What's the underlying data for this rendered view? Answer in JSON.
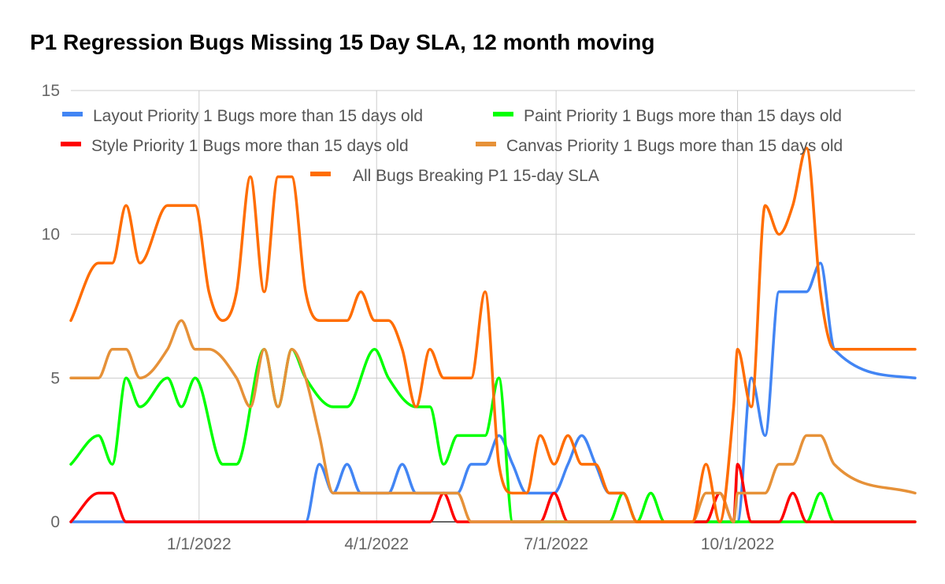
{
  "chart_data": {
    "type": "line",
    "title": "P1 Regression Bugs Missing 15 Day SLA, 12 month moving",
    "xlabel": "",
    "ylabel": "",
    "ylim": [
      0,
      15
    ],
    "xlim": [
      "2021-10-28",
      "2022-12-30"
    ],
    "y_ticks": [
      "0",
      "5",
      "10",
      "15"
    ],
    "x_ticks": [
      {
        "date": "2022-01-01",
        "label": "1/1/2022"
      },
      {
        "date": "2022-04-01",
        "label": "4/1/2022"
      },
      {
        "date": "2022-07-01",
        "label": "7/1/2022"
      },
      {
        "date": "2022-10-01",
        "label": "10/1/2022"
      }
    ],
    "grid": true,
    "legend_position": "top",
    "series": [
      {
        "name": "Layout Priority 1 Bugs more than 15 days old",
        "color": "#4285f4",
        "points": [
          [
            "2021-10-28",
            0
          ],
          [
            "2022-02-24",
            0
          ],
          [
            "2022-03-03",
            2
          ],
          [
            "2022-03-10",
            1
          ],
          [
            "2022-03-17",
            2
          ],
          [
            "2022-03-24",
            1
          ],
          [
            "2022-04-07",
            1
          ],
          [
            "2022-04-14",
            2
          ],
          [
            "2022-04-21",
            1
          ],
          [
            "2022-05-05",
            1
          ],
          [
            "2022-05-12",
            1
          ],
          [
            "2022-05-19",
            2
          ],
          [
            "2022-05-26",
            2
          ],
          [
            "2022-06-02",
            3
          ],
          [
            "2022-06-09",
            2
          ],
          [
            "2022-06-16",
            1
          ],
          [
            "2022-06-23",
            1
          ],
          [
            "2022-06-30",
            1
          ],
          [
            "2022-07-07",
            2
          ],
          [
            "2022-07-14",
            3
          ],
          [
            "2022-07-21",
            2
          ],
          [
            "2022-07-28",
            1
          ],
          [
            "2022-08-04",
            1
          ],
          [
            "2022-08-11",
            0
          ],
          [
            "2022-10-01",
            0
          ],
          [
            "2022-10-08",
            5
          ],
          [
            "2022-10-15",
            3
          ],
          [
            "2022-10-22",
            8
          ],
          [
            "2022-10-29",
            8
          ],
          [
            "2022-11-05",
            8
          ],
          [
            "2022-11-12",
            9
          ],
          [
            "2022-11-19",
            6
          ],
          [
            "2022-12-30",
            5
          ]
        ]
      },
      {
        "name": "Paint Priority 1 Bugs more than 15 days old",
        "color": "#00ff00",
        "points": [
          [
            "2021-10-28",
            2
          ],
          [
            "2021-11-11",
            3
          ],
          [
            "2021-11-18",
            2
          ],
          [
            "2021-11-25",
            5
          ],
          [
            "2021-12-02",
            4
          ],
          [
            "2021-12-16",
            5
          ],
          [
            "2021-12-23",
            4
          ],
          [
            "2021-12-30",
            5
          ],
          [
            "2022-01-13",
            2
          ],
          [
            "2022-01-20",
            2
          ],
          [
            "2022-02-03",
            6
          ],
          [
            "2022-02-10",
            4
          ],
          [
            "2022-02-17",
            6
          ],
          [
            "2022-02-24",
            5
          ],
          [
            "2022-03-10",
            4
          ],
          [
            "2022-03-17",
            4
          ],
          [
            "2022-03-31",
            6
          ],
          [
            "2022-04-07",
            5
          ],
          [
            "2022-04-21",
            4
          ],
          [
            "2022-04-28",
            4
          ],
          [
            "2022-05-05",
            2
          ],
          [
            "2022-05-12",
            3
          ],
          [
            "2022-05-19",
            3
          ],
          [
            "2022-05-26",
            3
          ],
          [
            "2022-06-02",
            5
          ],
          [
            "2022-06-09",
            0
          ],
          [
            "2022-07-28",
            0
          ],
          [
            "2022-08-04",
            1
          ],
          [
            "2022-08-11",
            0
          ],
          [
            "2022-08-18",
            1
          ],
          [
            "2022-08-25",
            0
          ],
          [
            "2022-11-05",
            0
          ],
          [
            "2022-11-12",
            1
          ],
          [
            "2022-11-19",
            0
          ],
          [
            "2022-12-30",
            0
          ]
        ]
      },
      {
        "name": "Style Priority 1 Bugs more than 15 days old",
        "color": "#ff0000",
        "points": [
          [
            "2021-10-28",
            0
          ],
          [
            "2021-11-11",
            1
          ],
          [
            "2021-11-18",
            1
          ],
          [
            "2021-11-25",
            0
          ],
          [
            "2022-04-28",
            0
          ],
          [
            "2022-05-05",
            1
          ],
          [
            "2022-05-12",
            0
          ],
          [
            "2022-06-23",
            0
          ],
          [
            "2022-06-30",
            1
          ],
          [
            "2022-07-07",
            0
          ],
          [
            "2022-09-15",
            0
          ],
          [
            "2022-09-22",
            1
          ],
          [
            "2022-09-29",
            0
          ],
          [
            "2022-10-01",
            2
          ],
          [
            "2022-10-08",
            0
          ],
          [
            "2022-10-22",
            0
          ],
          [
            "2022-10-29",
            1
          ],
          [
            "2022-11-05",
            0
          ],
          [
            "2022-12-30",
            0
          ]
        ]
      },
      {
        "name": "Canvas Priority 1 Bugs more than 15 days old",
        "color": "#e69138",
        "points": [
          [
            "2021-10-28",
            5
          ],
          [
            "2021-11-11",
            5
          ],
          [
            "2021-11-18",
            6
          ],
          [
            "2021-11-25",
            6
          ],
          [
            "2021-12-02",
            5
          ],
          [
            "2021-12-16",
            6
          ],
          [
            "2021-12-23",
            7
          ],
          [
            "2021-12-30",
            6
          ],
          [
            "2022-01-06",
            6
          ],
          [
            "2022-01-20",
            5
          ],
          [
            "2022-01-27",
            4
          ],
          [
            "2022-02-03",
            6
          ],
          [
            "2022-02-10",
            4
          ],
          [
            "2022-02-17",
            6
          ],
          [
            "2022-02-24",
            5
          ],
          [
            "2022-03-03",
            3
          ],
          [
            "2022-03-10",
            1
          ],
          [
            "2022-03-17",
            1
          ],
          [
            "2022-04-28",
            1
          ],
          [
            "2022-05-05",
            1
          ],
          [
            "2022-05-12",
            1
          ],
          [
            "2022-05-19",
            0
          ],
          [
            "2022-09-08",
            0
          ],
          [
            "2022-09-15",
            1
          ],
          [
            "2022-09-22",
            1
          ],
          [
            "2022-09-29",
            0
          ],
          [
            "2022-10-01",
            1
          ],
          [
            "2022-10-08",
            1
          ],
          [
            "2022-10-15",
            1
          ],
          [
            "2022-10-22",
            2
          ],
          [
            "2022-10-29",
            2
          ],
          [
            "2022-11-05",
            3
          ],
          [
            "2022-11-12",
            3
          ],
          [
            "2022-11-19",
            2
          ],
          [
            "2022-12-30",
            1
          ]
        ]
      },
      {
        "name": "All Bugs Breaking P1 15-day SLA",
        "color": "#ff6d01",
        "points": [
          [
            "2021-10-28",
            7
          ],
          [
            "2021-11-11",
            9
          ],
          [
            "2021-11-18",
            9
          ],
          [
            "2021-11-25",
            11
          ],
          [
            "2021-12-02",
            9
          ],
          [
            "2021-12-16",
            11
          ],
          [
            "2021-12-23",
            11
          ],
          [
            "2021-12-30",
            11
          ],
          [
            "2022-01-06",
            8
          ],
          [
            "2022-01-13",
            7
          ],
          [
            "2022-01-20",
            8
          ],
          [
            "2022-01-27",
            12
          ],
          [
            "2022-02-03",
            8
          ],
          [
            "2022-02-10",
            12
          ],
          [
            "2022-02-17",
            12
          ],
          [
            "2022-02-24",
            8
          ],
          [
            "2022-03-03",
            7
          ],
          [
            "2022-03-10",
            7
          ],
          [
            "2022-03-17",
            7
          ],
          [
            "2022-03-24",
            8
          ],
          [
            "2022-03-31",
            7
          ],
          [
            "2022-04-07",
            7
          ],
          [
            "2022-04-14",
            6
          ],
          [
            "2022-04-21",
            4
          ],
          [
            "2022-04-28",
            6
          ],
          [
            "2022-05-05",
            5
          ],
          [
            "2022-05-12",
            5
          ],
          [
            "2022-05-19",
            5
          ],
          [
            "2022-05-26",
            8
          ],
          [
            "2022-06-02",
            2
          ],
          [
            "2022-06-09",
            1
          ],
          [
            "2022-06-16",
            1
          ],
          [
            "2022-06-23",
            3
          ],
          [
            "2022-06-30",
            2
          ],
          [
            "2022-07-07",
            3
          ],
          [
            "2022-07-14",
            2
          ],
          [
            "2022-07-21",
            2
          ],
          [
            "2022-07-28",
            1
          ],
          [
            "2022-08-04",
            1
          ],
          [
            "2022-08-11",
            0
          ],
          [
            "2022-09-08",
            0
          ],
          [
            "2022-09-15",
            2
          ],
          [
            "2022-09-22",
            0
          ],
          [
            "2022-09-29",
            4
          ],
          [
            "2022-10-01",
            6
          ],
          [
            "2022-10-08",
            4
          ],
          [
            "2022-10-15",
            11
          ],
          [
            "2022-10-22",
            10
          ],
          [
            "2022-10-29",
            11
          ],
          [
            "2022-11-05",
            13
          ],
          [
            "2022-11-12",
            8
          ],
          [
            "2022-11-19",
            6
          ],
          [
            "2022-12-30",
            6
          ]
        ]
      }
    ]
  }
}
